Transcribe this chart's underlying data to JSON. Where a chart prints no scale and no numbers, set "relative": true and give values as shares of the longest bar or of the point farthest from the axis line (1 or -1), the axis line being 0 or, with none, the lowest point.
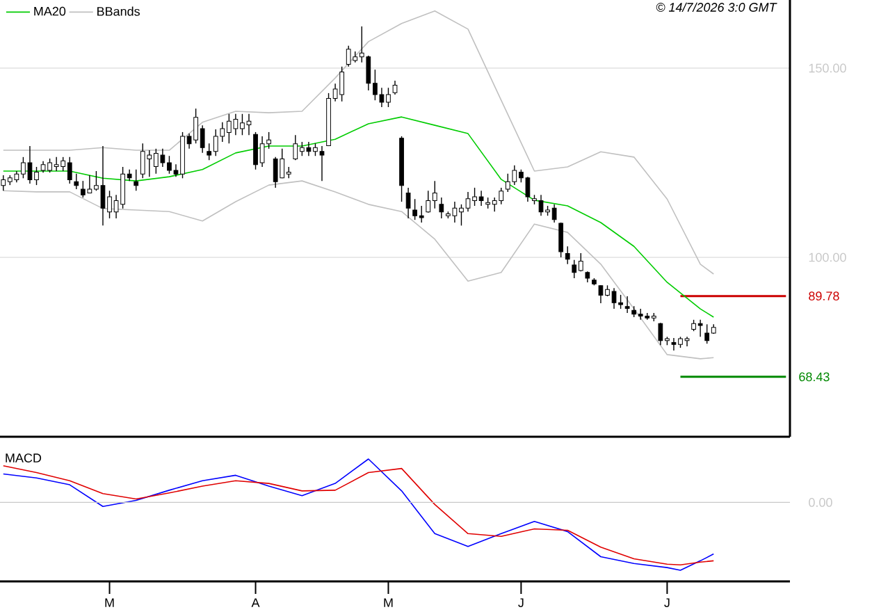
{
  "chart_data": [
    {
      "type": "candlestick",
      "color": "#000000",
      "categories": [
        null,
        null,
        null,
        null,
        null,
        null,
        null,
        null,
        null,
        null,
        null,
        null,
        null,
        null,
        null,
        null,
        null,
        null,
        null,
        null,
        null,
        null,
        null,
        null,
        null,
        null,
        null,
        null,
        null,
        null,
        null,
        null,
        null,
        null,
        null,
        null,
        null,
        null,
        null,
        null,
        null,
        null,
        null,
        null,
        null,
        null,
        null,
        null,
        null,
        null,
        null,
        null,
        null,
        null,
        null,
        null,
        null,
        null,
        null,
        null,
        null,
        null,
        null,
        null,
        null,
        null,
        null,
        null,
        null,
        null,
        null,
        null,
        null,
        null,
        null,
        null,
        null,
        null,
        null,
        null,
        null,
        null,
        null,
        null,
        null,
        null,
        null,
        null,
        null,
        null,
        null,
        null,
        null,
        null,
        null,
        null,
        null,
        null,
        null,
        null,
        null,
        null,
        null,
        null,
        null,
        null,
        null,
        null,
        null,
        null,
        null,
        null,
        null,
        null,
        null,
        null,
        null,
        null,
        null
      ],
      "ohlc": [
        [
          119,
          121.7,
          117.6,
          120.5
        ],
        [
          120,
          121.7,
          119.1,
          121
        ],
        [
          120.5,
          122.8,
          119.8,
          122
        ],
        [
          122,
          126.5,
          120.9,
          125
        ],
        [
          125,
          129.4,
          119.5,
          120.5
        ],
        [
          120.5,
          123.9,
          119.1,
          122.5
        ],
        [
          123,
          125.4,
          122.4,
          124.5
        ],
        [
          123,
          126.1,
          122.4,
          125
        ],
        [
          124,
          126.5,
          122.8,
          124.5
        ],
        [
          124,
          126.5,
          122.8,
          125.5
        ],
        [
          125,
          126.5,
          119.5,
          120.5
        ],
        [
          120,
          122.1,
          118,
          119
        ],
        [
          118,
          120.2,
          115.8,
          116.5
        ],
        [
          117,
          121.7,
          116.9,
          118
        ],
        [
          118,
          122.8,
          117.6,
          119
        ],
        [
          119,
          129.4,
          108.4,
          113
        ],
        [
          112,
          117.6,
          110.3,
          116
        ],
        [
          112,
          116.5,
          110.3,
          115
        ],
        [
          114,
          123.9,
          112.9,
          122
        ],
        [
          122,
          123.2,
          120.2,
          121
        ],
        [
          120,
          123.2,
          117.6,
          119
        ],
        [
          122,
          130.1,
          120.9,
          128
        ],
        [
          126,
          128.3,
          121.3,
          127
        ],
        [
          124,
          128.7,
          122.1,
          127.5
        ],
        [
          127,
          128.7,
          123.9,
          125
        ],
        [
          125,
          126.8,
          122.1,
          123
        ],
        [
          123,
          124.6,
          121.3,
          122
        ],
        [
          122,
          133.1,
          120.9,
          132
        ],
        [
          132,
          132.7,
          128.7,
          130
        ],
        [
          131,
          139.3,
          130.1,
          137
        ],
        [
          134,
          134.9,
          127.6,
          129
        ],
        [
          128,
          130.1,
          125.7,
          127
        ],
        [
          128,
          133.8,
          126.8,
          132
        ],
        [
          132,
          135.7,
          130.5,
          134
        ],
        [
          133,
          137.9,
          130.1,
          136
        ],
        [
          134,
          137.9,
          132.3,
          136.5
        ],
        [
          134,
          137.9,
          132.3,
          135.5
        ],
        [
          135,
          137.9,
          132.3,
          136
        ],
        [
          132.5,
          133.1,
          123.2,
          124.5
        ],
        [
          125,
          132,
          123.9,
          130
        ],
        [
          130,
          133.1,
          128.7,
          131
        ],
        [
          126,
          126.5,
          118.4,
          120
        ],
        [
          121,
          128.7,
          120.9,
          126
        ],
        [
          122,
          123.9,
          120.9,
          122.5
        ],
        [
          126,
          132.3,
          125.7,
          130
        ],
        [
          128,
          130.5,
          126.8,
          129
        ],
        [
          129,
          130.5,
          126.8,
          128
        ],
        [
          128,
          130.1,
          126.8,
          129
        ],
        [
          128,
          129.4,
          120.2,
          127
        ],
        [
          129.5,
          143.4,
          129.4,
          142
        ],
        [
          142,
          145.9,
          141.2,
          144.5
        ],
        [
          143,
          150.4,
          141.2,
          149
        ],
        [
          151,
          155.9,
          150.4,
          155
        ],
        [
          152,
          154.4,
          151.5,
          153
        ],
        [
          153,
          161,
          151.5,
          154
        ],
        [
          153,
          153.3,
          144.1,
          146
        ],
        [
          146,
          149.6,
          141.5,
          143
        ],
        [
          143,
          144.8,
          139.7,
          141
        ],
        [
          141,
          144.8,
          139.7,
          143
        ],
        [
          143.5,
          146.7,
          143,
          145.5
        ],
        [
          131.5,
          132,
          114.7,
          119
        ],
        [
          117,
          118.4,
          110.3,
          113
        ],
        [
          112.5,
          115.4,
          109.9,
          111
        ],
        [
          111,
          113.6,
          109.2,
          110.5
        ],
        [
          112,
          117.6,
          111.8,
          115
        ],
        [
          115,
          120.2,
          112.9,
          117
        ],
        [
          114,
          115.8,
          110.3,
          112
        ],
        [
          111,
          112.1,
          110.3,
          111.5
        ],
        [
          111,
          114.7,
          109.2,
          113
        ],
        [
          112,
          114,
          108.4,
          113
        ],
        [
          113,
          117.3,
          112.1,
          115.5
        ],
        [
          115,
          118.4,
          113.6,
          116
        ],
        [
          116,
          117.6,
          113.6,
          115
        ],
        [
          114,
          115.8,
          112.9,
          114.5
        ],
        [
          114,
          115.8,
          112.1,
          115
        ],
        [
          115,
          118.4,
          114,
          117.5
        ],
        [
          118,
          122.1,
          117.3,
          120
        ],
        [
          120,
          124.3,
          119.1,
          123
        ],
        [
          122.5,
          123.2,
          119.8,
          121
        ],
        [
          121,
          121.3,
          114.7,
          116
        ],
        [
          115,
          116.5,
          114,
          115.5
        ],
        [
          115,
          116.5,
          111,
          112
        ],
        [
          112,
          113.6,
          111,
          112.5
        ],
        [
          113,
          114,
          109.2,
          110
        ],
        [
          109,
          109.2,
          100,
          101.5
        ],
        [
          101,
          102.9,
          98.2,
          99.5
        ],
        [
          98,
          99.3,
          94.5,
          96
        ],
        [
          96.5,
          101.1,
          96.3,
          99
        ],
        [
          96,
          96.3,
          93.4,
          94.5
        ],
        [
          94,
          94.5,
          92.6,
          93
        ],
        [
          92.5,
          92.6,
          87.9,
          90
        ],
        [
          90,
          92.6,
          89.7,
          91.5
        ],
        [
          91,
          91.9,
          86.4,
          88
        ],
        [
          88,
          90.1,
          86.4,
          87.5
        ],
        [
          87,
          89.7,
          85.3,
          86.5
        ],
        [
          86,
          87.1,
          84.2,
          85
        ],
        [
          85,
          86.4,
          83.5,
          84.5
        ],
        [
          84.5,
          85.3,
          83.5,
          84
        ],
        [
          84,
          85.3,
          83.1,
          84.5
        ],
        [
          82.5,
          82.7,
          76.8,
          78
        ],
        [
          78,
          79,
          76.8,
          78.5
        ],
        [
          77.5,
          78.7,
          75.4,
          77
        ],
        [
          77,
          79,
          76.1,
          78.5
        ],
        [
          78,
          79,
          76.5,
          78.5
        ],
        [
          81,
          83.5,
          80.5,
          82.5
        ],
        [
          82.5,
          83.5,
          79,
          82
        ],
        [
          80,
          82.3,
          77.2,
          78
        ],
        [
          80,
          82.3,
          79.8,
          81.5
        ],
        null,
        null,
        null,
        null,
        null,
        null,
        null,
        null,
        null,
        null,
        null
      ],
      "series": [
        {
          "name": "MA20",
          "type": "line",
          "color": "#00cc00",
          "values": [
            122.8,
            null,
            null,
            null,
            null,
            122.8,
            null,
            null,
            null,
            null,
            122.8,
            null,
            null,
            null,
            null,
            120.9,
            null,
            null,
            null,
            null,
            120.2,
            null,
            null,
            null,
            null,
            121.3,
            null,
            null,
            null,
            null,
            123.2,
            null,
            null,
            null,
            null,
            127.6,
            null,
            null,
            null,
            null,
            129.4,
            null,
            null,
            null,
            null,
            129.4,
            null,
            null,
            null,
            null,
            131.2,
            null,
            null,
            null,
            null,
            135.3,
            null,
            null,
            null,
            null,
            137.1,
            null,
            null,
            null,
            null,
            134.9,
            null,
            null,
            null,
            null,
            132.7,
            null,
            null,
            null,
            null,
            120.6,
            null,
            null,
            null,
            null,
            115.1,
            null,
            null,
            null,
            null,
            113.6,
            null,
            null,
            null,
            null,
            109.2,
            null,
            null,
            null,
            null,
            102.9,
            null,
            null,
            null,
            null,
            93.4,
            null,
            null,
            null,
            null,
            86.4,
            null,
            84.2,
            null,
            null,
            null,
            null,
            null,
            null,
            null,
            null,
            null,
            null,
            null
          ]
        },
        {
          "name": "BBands",
          "type": "line",
          "color": "#c0c0c0",
          "values": [
            128.3,
            null,
            null,
            null,
            null,
            128.3,
            null,
            null,
            null,
            null,
            128.3,
            null,
            null,
            null,
            null,
            129.0,
            null,
            null,
            null,
            null,
            128.3,
            null,
            null,
            null,
            null,
            128.3,
            null,
            null,
            null,
            null,
            135.7,
            null,
            null,
            null,
            null,
            138.6,
            null,
            null,
            null,
            null,
            138.2,
            null,
            null,
            null,
            null,
            138.6,
            null,
            null,
            null,
            null,
            147.4,
            null,
            null,
            null,
            null,
            157.0,
            null,
            null,
            null,
            null,
            161.8,
            null,
            null,
            null,
            null,
            165.1,
            null,
            null,
            null,
            null,
            160.3,
            null,
            null,
            null,
            null,
            141.5,
            null,
            null,
            null,
            null,
            122.8,
            null,
            null,
            null,
            null,
            123.9,
            null,
            null,
            null,
            null,
            127.9,
            null,
            null,
            null,
            null,
            126.5,
            null,
            null,
            null,
            null,
            115.4,
            null,
            null,
            null,
            null,
            98.2,
            null,
            95.6,
            null,
            null,
            null,
            null,
            null,
            null,
            null,
            null,
            null,
            null,
            null
          ]
        },
        {
          "type": "line",
          "color": "#c0c0c0",
          "values": [
            117.6,
            null,
            null,
            null,
            null,
            117.3,
            null,
            null,
            null,
            null,
            117.3,
            null,
            null,
            null,
            null,
            112.9,
            null,
            null,
            null,
            null,
            112.5,
            null,
            null,
            null,
            null,
            112.1,
            null,
            null,
            null,
            null,
            109.6,
            null,
            null,
            null,
            null,
            114.7,
            null,
            null,
            null,
            null,
            119.1,
            null,
            null,
            null,
            null,
            120.2,
            null,
            null,
            null,
            null,
            117.3,
            null,
            null,
            null,
            null,
            114.0,
            null,
            null,
            null,
            null,
            112.1,
            null,
            null,
            null,
            null,
            104.8,
            null,
            null,
            null,
            null,
            93.7,
            null,
            null,
            null,
            null,
            96.0,
            null,
            null,
            null,
            null,
            108.8,
            null,
            null,
            null,
            null,
            106.6,
            null,
            null,
            null,
            null,
            98.2,
            null,
            null,
            null,
            null,
            86.4,
            null,
            null,
            null,
            null,
            74.3,
            null,
            null,
            null,
            null,
            73.2,
            null,
            73.5,
            null,
            null,
            null,
            null,
            null,
            null,
            null,
            null,
            null,
            null,
            null
          ]
        }
      ],
      "ylim": [
        52.6,
        168
      ],
      "yticks": [
        {
          "value": 100,
          "label": "100.00"
        },
        {
          "value": 150,
          "label": "150.00"
        }
      ],
      "grid": "y",
      "legend": "top left",
      "tick_labels": "y",
      "ref_lines": [
        {
          "axis": "y",
          "value": 89.78,
          "label": "89.78",
          "color": "#cc0000"
        },
        {
          "axis": "y",
          "value": 68.43,
          "label": "68.43",
          "color": "#008800"
        }
      ],
      "annotations": [
        "© 14/7/2026 3:0 GMT"
      ]
    },
    {
      "type": "line",
      "title": "MACD",
      "relative": true,
      "categories": [
        null,
        null,
        null,
        null,
        null,
        null,
        null,
        null,
        null,
        null,
        null,
        null,
        null,
        null,
        null,
        null,
        "M",
        null,
        null,
        null,
        null,
        null,
        null,
        null,
        null,
        null,
        null,
        null,
        null,
        null,
        null,
        null,
        null,
        null,
        null,
        null,
        null,
        null,
        "A",
        null,
        null,
        null,
        null,
        null,
        null,
        null,
        null,
        null,
        null,
        null,
        null,
        null,
        null,
        null,
        null,
        null,
        null,
        null,
        "M",
        null,
        null,
        null,
        null,
        null,
        null,
        null,
        null,
        null,
        null,
        null,
        null,
        null,
        null,
        null,
        null,
        null,
        null,
        null,
        "J",
        null,
        null,
        null,
        null,
        null,
        null,
        null,
        null,
        null,
        null,
        null,
        null,
        null,
        null,
        null,
        null,
        null,
        null,
        null,
        null,
        null,
        "J",
        null,
        null,
        null,
        null,
        null,
        null,
        null,
        null,
        null,
        null,
        null,
        null,
        null,
        null,
        null,
        null,
        null,
        null
      ],
      "series": [
        {
          "color": "#0000ff",
          "values": [
            0.42,
            null,
            null,
            null,
            null,
            0.36,
            null,
            null,
            null,
            null,
            0.26,
            null,
            null,
            null,
            null,
            -0.06,
            null,
            null,
            null,
            null,
            0.03,
            null,
            null,
            null,
            null,
            0.18,
            null,
            null,
            null,
            null,
            0.32,
            null,
            null,
            null,
            null,
            0.4,
            null,
            null,
            null,
            null,
            0.24,
            null,
            null,
            null,
            null,
            0.1,
            null,
            null,
            null,
            null,
            0.28,
            null,
            null,
            null,
            null,
            0.64,
            null,
            null,
            null,
            null,
            0.17,
            null,
            null,
            null,
            null,
            -0.46,
            null,
            null,
            null,
            null,
            -0.65,
            null,
            null,
            null,
            null,
            -0.46,
            null,
            null,
            null,
            null,
            -0.28,
            null,
            null,
            null,
            null,
            -0.43,
            null,
            null,
            null,
            null,
            -0.8,
            null,
            null,
            null,
            null,
            -0.9,
            null,
            null,
            null,
            null,
            -0.96,
            null,
            -1.0,
            null,
            null,
            -0.86,
            null,
            -0.76,
            null,
            null,
            null,
            null,
            null,
            null,
            null,
            null,
            null,
            null,
            null
          ]
        },
        {
          "color": "#e00000",
          "values": [
            0.54,
            null,
            null,
            null,
            null,
            0.44,
            null,
            null,
            null,
            null,
            0.32,
            null,
            null,
            null,
            null,
            0.13,
            null,
            null,
            null,
            null,
            0.05,
            null,
            null,
            null,
            null,
            0.14,
            null,
            null,
            null,
            null,
            0.24,
            null,
            null,
            null,
            null,
            0.32,
            null,
            null,
            null,
            null,
            0.28,
            null,
            null,
            null,
            null,
            0.17,
            null,
            null,
            null,
            null,
            0.18,
            null,
            null,
            null,
            null,
            0.44,
            null,
            null,
            null,
            null,
            0.5,
            null,
            null,
            null,
            null,
            -0.03,
            null,
            null,
            null,
            null,
            -0.46,
            null,
            null,
            null,
            null,
            -0.5,
            null,
            null,
            null,
            null,
            -0.39,
            null,
            null,
            null,
            null,
            -0.41,
            null,
            null,
            null,
            null,
            -0.66,
            null,
            null,
            null,
            null,
            -0.83,
            null,
            null,
            null,
            null,
            -0.91,
            null,
            -0.92,
            null,
            null,
            -0.88,
            null,
            -0.86,
            null,
            null,
            null,
            null,
            null,
            null,
            null,
            null,
            null,
            null,
            null
          ]
        }
      ],
      "annotations": [
        "0.00"
      ]
    }
  ]
}
